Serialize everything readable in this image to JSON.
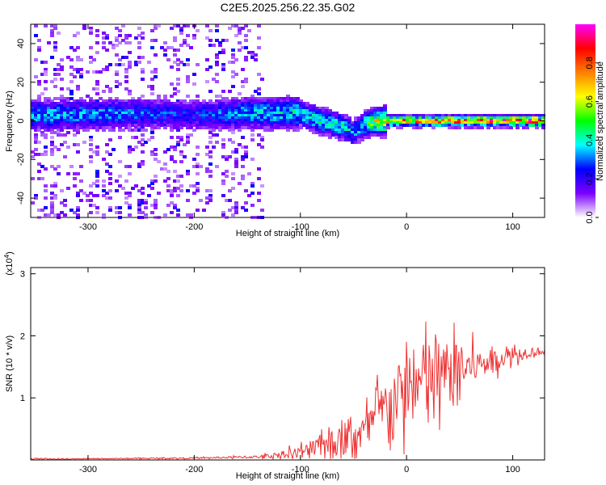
{
  "figure_title": "C2E5.2025.256.22.35.G02",
  "chart_data": [
    {
      "type": "heatmap",
      "xlabel": "Height of straight line (km)",
      "ylabel": "Frequency (Hz)",
      "xlim": [
        -354,
        130
      ],
      "ylim": [
        -50,
        50
      ],
      "xticks": [
        -300,
        -200,
        -100,
        0,
        100
      ],
      "yticks": [
        -40,
        -20,
        0,
        20,
        40
      ],
      "colorbar": {
        "label": "Normalized spectral amplitude",
        "range": [
          0,
          1
        ],
        "ticks": [
          "0.0",
          "0.2",
          "0.4",
          "0.6",
          "0.8"
        ],
        "colormap": [
          "#ffffff",
          "#7b00ff",
          "#0000ff",
          "#00ffff",
          "#00ff00",
          "#ffff00",
          "#ff7f00",
          "#ff0000",
          "#ff00ff"
        ]
      },
      "ridge": {
        "description_points_x": [
          -330,
          -250,
          -200,
          -150,
          -100,
          -80,
          -60,
          -50,
          -40,
          -30,
          -20,
          0,
          50,
          130
        ],
        "center_freq": [
          3,
          4,
          3,
          4,
          4,
          0,
          -3,
          -6,
          -2,
          0,
          0,
          0,
          0,
          0
        ],
        "amplitude": [
          0.35,
          0.3,
          0.25,
          0.35,
          0.4,
          0.45,
          0.4,
          0.35,
          0.4,
          0.6,
          0.75,
          0.8,
          0.85,
          0.9
        ]
      },
      "noise_region_x": [
        -354,
        -135
      ]
    },
    {
      "type": "line",
      "xlabel": "Height of straight line (km)",
      "ylabel": "SNR (10 * v/v)",
      "y_multiplier": "(x10^4)",
      "xlim": [
        -354,
        130
      ],
      "ylim": [
        0,
        3.1
      ],
      "xticks": [
        -300,
        -200,
        -100,
        0,
        100
      ],
      "yticks": [
        1,
        2,
        3
      ],
      "series": [
        {
          "color": "#ee3333",
          "envelope_x": [
            -354,
            -300,
            -200,
            -140,
            -120,
            -100,
            -80,
            -60,
            -50,
            -40,
            -30,
            -20,
            -10,
            0,
            10,
            20,
            30,
            40,
            50,
            60,
            70,
            80,
            90,
            100,
            110,
            120,
            130
          ],
          "envelope_base": [
            0.0,
            0.02,
            0.03,
            0.05,
            0.08,
            0.12,
            0.2,
            0.3,
            0.35,
            0.45,
            0.65,
            0.85,
            1.0,
            1.1,
            1.2,
            1.3,
            1.35,
            1.4,
            1.45,
            1.5,
            1.55,
            1.6,
            1.65,
            1.7,
            1.72,
            1.75,
            1.75
          ],
          "envelope_amp": [
            0.0,
            0.01,
            0.02,
            0.04,
            0.1,
            0.2,
            0.35,
            0.5,
            0.5,
            0.55,
            0.7,
            0.9,
            1.0,
            1.1,
            1.2,
            1.3,
            1.2,
            1.0,
            0.8,
            0.6,
            0.45,
            0.35,
            0.3,
            0.25,
            0.2,
            0.15,
            0.1
          ]
        }
      ]
    }
  ]
}
